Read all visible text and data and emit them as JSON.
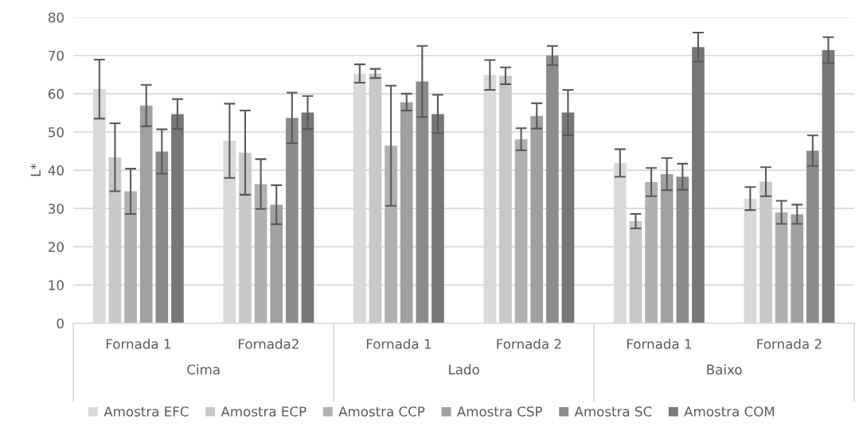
{
  "chart_data": {
    "type": "bar",
    "ylabel": "L*",
    "categories": [
      "Fornada 1",
      "Fornada2",
      "Fornada 1",
      "Fornada 2",
      "Fornada 1",
      "Fornada 2"
    ],
    "annotations": [
      "Cima",
      "Lado",
      "Baixo"
    ],
    "series": [
      {
        "name": "Amostra EFC",
        "color": "#d9d9d9",
        "values": [
          61.2,
          47.7,
          65.3,
          64.9,
          41.9,
          32.6
        ],
        "errors": [
          7.7,
          9.7,
          2.4,
          3.9,
          3.6,
          3.0
        ]
      },
      {
        "name": "Amostra ECP",
        "color": "#c8c8c8",
        "values": [
          43.4,
          44.6,
          65.3,
          64.7,
          26.7,
          37.0
        ],
        "errors": [
          8.9,
          11.0,
          1.2,
          2.2,
          1.9,
          3.8
        ]
      },
      {
        "name": "Amostra CCP",
        "color": "#b0b0b0",
        "values": [
          34.5,
          36.4,
          46.4,
          48.1,
          36.9,
          29.0
        ],
        "errors": [
          5.9,
          6.5,
          15.7,
          2.9,
          3.7,
          3.0
        ]
      },
      {
        "name": "Amostra CSP",
        "color": "#a0a0a0",
        "values": [
          56.9,
          31.0,
          57.8,
          54.2,
          39.0,
          28.5
        ],
        "errors": [
          5.4,
          5.1,
          2.2,
          3.3,
          4.2,
          2.5
        ]
      },
      {
        "name": "Amostra SC",
        "color": "#8c8c8c",
        "values": [
          44.9,
          53.7,
          63.2,
          70.0,
          38.3,
          45.1
        ],
        "errors": [
          5.8,
          6.6,
          9.3,
          2.5,
          3.4,
          4.0
        ]
      },
      {
        "name": "Amostra COM",
        "color": "#777777",
        "values": [
          54.7,
          55.1,
          54.7,
          55.1,
          72.2,
          71.4
        ],
        "errors": [
          3.9,
          4.3,
          5.0,
          5.9,
          3.8,
          3.4
        ]
      }
    ],
    "ylim": [
      0,
      80
    ],
    "yticks": [
      0,
      10,
      20,
      30,
      40,
      50,
      60,
      70,
      80
    ],
    "grid": "y",
    "legend": "bottom"
  }
}
